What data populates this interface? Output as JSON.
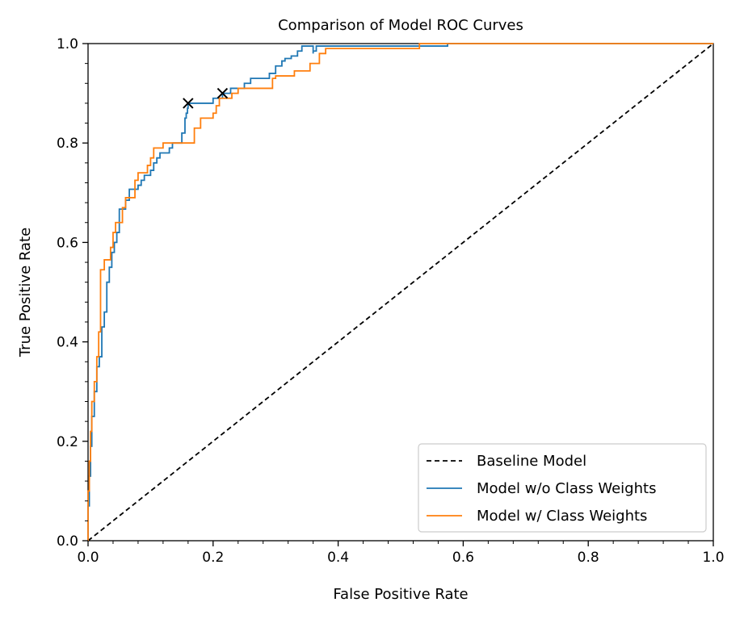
{
  "chart_data": {
    "type": "line",
    "title": "Comparison of Model ROC Curves",
    "xlabel": "False Positive Rate",
    "ylabel": "True Positive Rate",
    "xlim": [
      0.0,
      1.0
    ],
    "ylim": [
      0.0,
      1.0
    ],
    "x_ticks": [
      "0.0",
      "0.2",
      "0.4",
      "0.6",
      "0.8",
      "1.0"
    ],
    "y_ticks": [
      "0.0",
      "0.2",
      "0.4",
      "0.6",
      "0.8",
      "1.0"
    ],
    "grid": false,
    "legend_position": "lower-right",
    "series": [
      {
        "name": "Baseline Model",
        "color": "#000000",
        "style": "dashed",
        "points": [
          [
            0.0,
            0.0
          ],
          [
            1.0,
            1.0
          ]
        ]
      },
      {
        "name": "Model w/o Class Weights",
        "color": "#1f77b4",
        "style": "step",
        "points": [
          [
            0.0,
            0.0
          ],
          [
            0.0,
            0.07
          ],
          [
            0.002,
            0.07
          ],
          [
            0.002,
            0.13
          ],
          [
            0.004,
            0.13
          ],
          [
            0.004,
            0.19
          ],
          [
            0.006,
            0.19
          ],
          [
            0.006,
            0.25
          ],
          [
            0.01,
            0.25
          ],
          [
            0.01,
            0.3
          ],
          [
            0.014,
            0.3
          ],
          [
            0.014,
            0.35
          ],
          [
            0.018,
            0.35
          ],
          [
            0.018,
            0.37
          ],
          [
            0.022,
            0.37
          ],
          [
            0.022,
            0.43
          ],
          [
            0.026,
            0.43
          ],
          [
            0.026,
            0.46
          ],
          [
            0.03,
            0.46
          ],
          [
            0.03,
            0.52
          ],
          [
            0.034,
            0.52
          ],
          [
            0.034,
            0.55
          ],
          [
            0.038,
            0.55
          ],
          [
            0.038,
            0.58
          ],
          [
            0.042,
            0.58
          ],
          [
            0.042,
            0.6
          ],
          [
            0.046,
            0.6
          ],
          [
            0.046,
            0.62
          ],
          [
            0.05,
            0.62
          ],
          [
            0.05,
            0.667
          ],
          [
            0.06,
            0.667
          ],
          [
            0.06,
            0.685
          ],
          [
            0.066,
            0.685
          ],
          [
            0.066,
            0.707
          ],
          [
            0.08,
            0.707
          ],
          [
            0.08,
            0.715
          ],
          [
            0.085,
            0.715
          ],
          [
            0.085,
            0.725
          ],
          [
            0.09,
            0.725
          ],
          [
            0.09,
            0.735
          ],
          [
            0.1,
            0.735
          ],
          [
            0.1,
            0.745
          ],
          [
            0.105,
            0.745
          ],
          [
            0.105,
            0.76
          ],
          [
            0.11,
            0.76
          ],
          [
            0.11,
            0.77
          ],
          [
            0.115,
            0.77
          ],
          [
            0.115,
            0.78
          ],
          [
            0.13,
            0.78
          ],
          [
            0.13,
            0.79
          ],
          [
            0.135,
            0.79
          ],
          [
            0.135,
            0.8
          ],
          [
            0.15,
            0.8
          ],
          [
            0.15,
            0.82
          ],
          [
            0.155,
            0.82
          ],
          [
            0.155,
            0.85
          ],
          [
            0.157,
            0.85
          ],
          [
            0.157,
            0.86
          ],
          [
            0.159,
            0.86
          ],
          [
            0.159,
            0.87
          ],
          [
            0.16,
            0.87
          ],
          [
            0.16,
            0.88
          ],
          [
            0.2,
            0.88
          ],
          [
            0.2,
            0.89
          ],
          [
            0.215,
            0.89
          ],
          [
            0.215,
            0.9
          ],
          [
            0.228,
            0.9
          ],
          [
            0.228,
            0.91
          ],
          [
            0.25,
            0.91
          ],
          [
            0.25,
            0.92
          ],
          [
            0.26,
            0.92
          ],
          [
            0.26,
            0.93
          ],
          [
            0.29,
            0.93
          ],
          [
            0.29,
            0.94
          ],
          [
            0.3,
            0.94
          ],
          [
            0.3,
            0.955
          ],
          [
            0.31,
            0.955
          ],
          [
            0.31,
            0.965
          ],
          [
            0.315,
            0.965
          ],
          [
            0.315,
            0.97
          ],
          [
            0.325,
            0.97
          ],
          [
            0.325,
            0.975
          ],
          [
            0.335,
            0.975
          ],
          [
            0.335,
            0.985
          ],
          [
            0.342,
            0.985
          ],
          [
            0.342,
            0.995
          ],
          [
            0.36,
            0.995
          ],
          [
            0.36,
            0.98
          ],
          [
            0.36,
            0.985
          ],
          [
            0.365,
            0.985
          ],
          [
            0.365,
            0.995
          ],
          [
            0.575,
            0.995
          ],
          [
            0.575,
            1.0
          ],
          [
            1.0,
            1.0
          ]
        ]
      },
      {
        "name": "Model w/ Class Weights",
        "color": "#ff7f0e",
        "style": "step",
        "points": [
          [
            0.0,
            0.0
          ],
          [
            0.0,
            0.1
          ],
          [
            0.002,
            0.1
          ],
          [
            0.002,
            0.16
          ],
          [
            0.004,
            0.16
          ],
          [
            0.004,
            0.22
          ],
          [
            0.006,
            0.22
          ],
          [
            0.006,
            0.28
          ],
          [
            0.01,
            0.28
          ],
          [
            0.01,
            0.32
          ],
          [
            0.014,
            0.32
          ],
          [
            0.014,
            0.37
          ],
          [
            0.017,
            0.37
          ],
          [
            0.017,
            0.42
          ],
          [
            0.02,
            0.42
          ],
          [
            0.02,
            0.545
          ],
          [
            0.026,
            0.545
          ],
          [
            0.026,
            0.565
          ],
          [
            0.036,
            0.565
          ],
          [
            0.036,
            0.59
          ],
          [
            0.04,
            0.59
          ],
          [
            0.04,
            0.62
          ],
          [
            0.044,
            0.62
          ],
          [
            0.044,
            0.64
          ],
          [
            0.055,
            0.64
          ],
          [
            0.055,
            0.67
          ],
          [
            0.06,
            0.67
          ],
          [
            0.06,
            0.69
          ],
          [
            0.075,
            0.69
          ],
          [
            0.075,
            0.725
          ],
          [
            0.08,
            0.725
          ],
          [
            0.08,
            0.74
          ],
          [
            0.095,
            0.74
          ],
          [
            0.095,
            0.755
          ],
          [
            0.1,
            0.755
          ],
          [
            0.1,
            0.77
          ],
          [
            0.105,
            0.77
          ],
          [
            0.105,
            0.79
          ],
          [
            0.12,
            0.79
          ],
          [
            0.12,
            0.8
          ],
          [
            0.16,
            0.8
          ],
          [
            0.16,
            0.8
          ],
          [
            0.17,
            0.8
          ],
          [
            0.17,
            0.83
          ],
          [
            0.18,
            0.83
          ],
          [
            0.18,
            0.85
          ],
          [
            0.2,
            0.85
          ],
          [
            0.2,
            0.86
          ],
          [
            0.205,
            0.86
          ],
          [
            0.205,
            0.875
          ],
          [
            0.21,
            0.875
          ],
          [
            0.21,
            0.89
          ],
          [
            0.23,
            0.89
          ],
          [
            0.23,
            0.9
          ],
          [
            0.24,
            0.9
          ],
          [
            0.24,
            0.91
          ],
          [
            0.295,
            0.91
          ],
          [
            0.295,
            0.93
          ],
          [
            0.3,
            0.93
          ],
          [
            0.3,
            0.935
          ],
          [
            0.33,
            0.935
          ],
          [
            0.33,
            0.945
          ],
          [
            0.355,
            0.945
          ],
          [
            0.355,
            0.96
          ],
          [
            0.37,
            0.96
          ],
          [
            0.37,
            0.98
          ],
          [
            0.38,
            0.98
          ],
          [
            0.38,
            0.99
          ],
          [
            0.53,
            0.99
          ],
          [
            0.53,
            1.0
          ],
          [
            1.0,
            1.0
          ]
        ]
      }
    ],
    "markers": [
      {
        "x": 0.16,
        "y": 0.88,
        "symbol": "x"
      },
      {
        "x": 0.215,
        "y": 0.9,
        "symbol": "x"
      }
    ]
  }
}
